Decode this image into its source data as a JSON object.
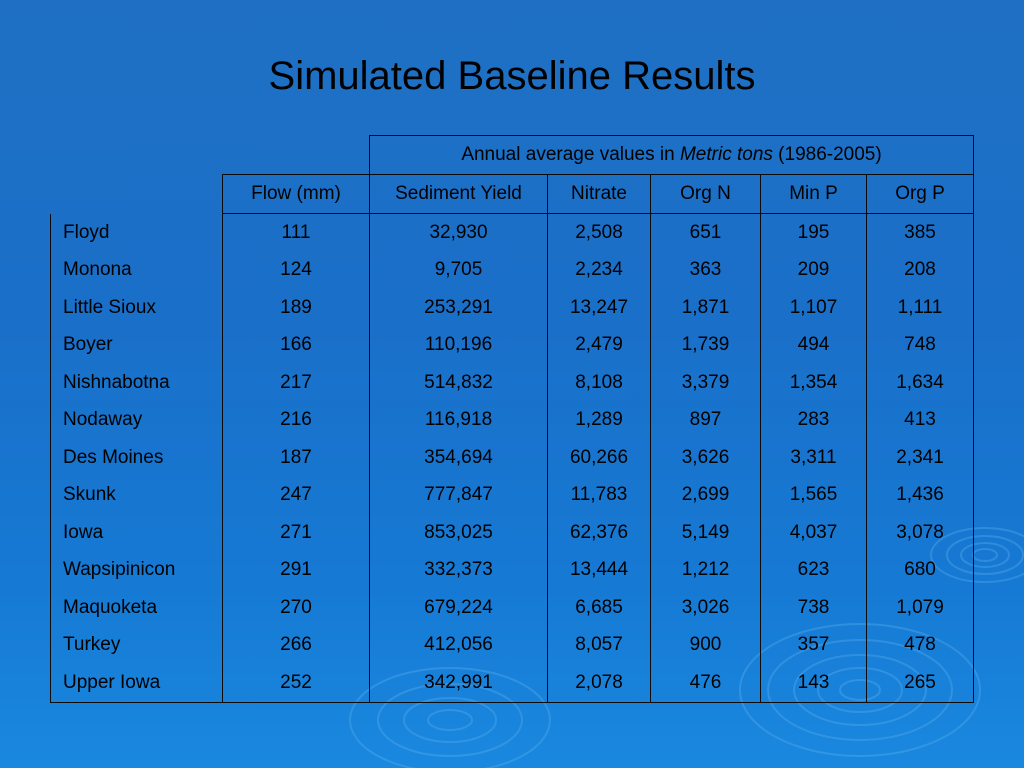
{
  "slide": {
    "title": "Simulated Baseline Results"
  },
  "table": {
    "group_header": {
      "prefix": "Annual average values in ",
      "italic": "Metric tons",
      "suffix": " (1986-2005)"
    },
    "columns": [
      "Flow (mm)",
      "Sediment Yield",
      "Nitrate",
      "Org N",
      "Min P",
      "Org P"
    ],
    "rows": [
      {
        "name": "Floyd",
        "values": [
          "111",
          "32,930",
          "2,508",
          "651",
          "195",
          "385"
        ]
      },
      {
        "name": "Monona",
        "values": [
          "124",
          "9,705",
          "2,234",
          "363",
          "209",
          "208"
        ]
      },
      {
        "name": "Little Sioux",
        "values": [
          "189",
          "253,291",
          "13,247",
          "1,871",
          "1,107",
          "1,111"
        ]
      },
      {
        "name": "Boyer",
        "values": [
          "166",
          "110,196",
          "2,479",
          "1,739",
          "494",
          "748"
        ]
      },
      {
        "name": "Nishnabotna",
        "values": [
          "217",
          "514,832",
          "8,108",
          "3,379",
          "1,354",
          "1,634"
        ]
      },
      {
        "name": "Nodaway",
        "values": [
          "216",
          "116,918",
          "1,289",
          "897",
          "283",
          "413"
        ]
      },
      {
        "name": "Des Moines",
        "values": [
          "187",
          "354,694",
          "60,266",
          "3,626",
          "3,311",
          "2,341"
        ]
      },
      {
        "name": "Skunk",
        "values": [
          "247",
          "777,847",
          "11,783",
          "2,699",
          "1,565",
          "1,436"
        ]
      },
      {
        "name": "Iowa",
        "values": [
          "271",
          "853,025",
          "62,376",
          "5,149",
          "4,037",
          "3,078"
        ]
      },
      {
        "name": "Wapsipinicon",
        "values": [
          "291",
          "332,373",
          "13,444",
          "1,212",
          "623",
          "680"
        ]
      },
      {
        "name": "Maquoketa",
        "values": [
          "270",
          "679,224",
          "6,685",
          "3,026",
          "738",
          "1,079"
        ]
      },
      {
        "name": "Turkey",
        "values": [
          "266",
          "412,056",
          "8,057",
          "900",
          "357",
          "478"
        ]
      },
      {
        "name": "Upper Iowa",
        "values": [
          "252",
          "342,991",
          "2,078",
          "476",
          "143",
          "265"
        ]
      }
    ]
  },
  "colors": {
    "background": "#1a6fc8",
    "text": "#000000",
    "ripple": "#5fb3ee"
  }
}
